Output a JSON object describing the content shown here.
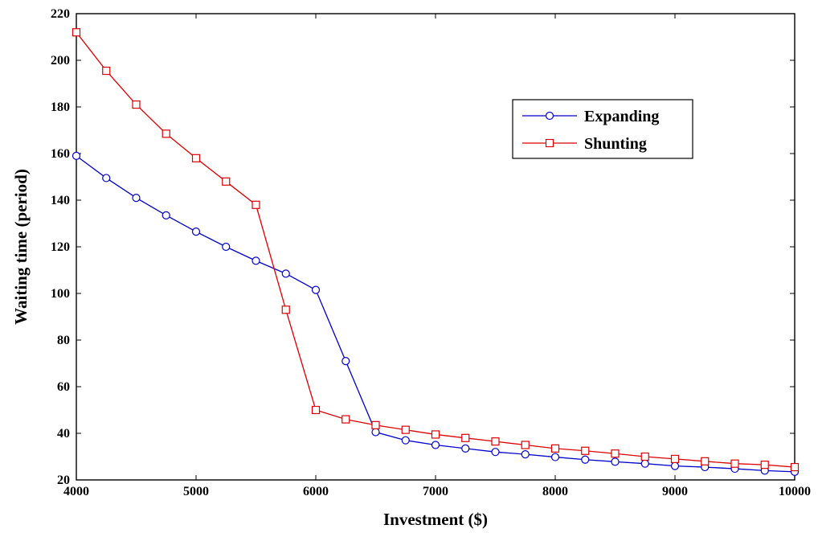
{
  "chart_data": {
    "type": "line",
    "title": "",
    "xlabel": "Investment ($)",
    "ylabel": "Waiting time (period)",
    "xlim": [
      4000,
      10000
    ],
    "ylim": [
      20,
      220
    ],
    "xticks": [
      4000,
      5000,
      6000,
      7000,
      8000,
      9000,
      10000
    ],
    "yticks": [
      20,
      40,
      60,
      80,
      100,
      120,
      140,
      160,
      180,
      200,
      220
    ],
    "grid": false,
    "legend_position": "top-right",
    "x": [
      4000,
      4250,
      4500,
      4750,
      5000,
      5250,
      5500,
      5750,
      6000,
      6250,
      6500,
      6750,
      7000,
      7250,
      7500,
      7750,
      8000,
      8250,
      8500,
      8750,
      9000,
      9250,
      9500,
      9750,
      10000
    ],
    "series": [
      {
        "name": "Expanding",
        "color": "#0000cc",
        "marker": "circle",
        "values": [
          159,
          149.5,
          141,
          133.5,
          126.5,
          120,
          114,
          108.5,
          101.5,
          71,
          40.5,
          37,
          35,
          33.5,
          32,
          31,
          29.8,
          28.7,
          27.8,
          27,
          26,
          25.5,
          24.8,
          24,
          23.5
        ]
      },
      {
        "name": "Shunting",
        "color": "#dd0000",
        "marker": "square",
        "values": [
          212,
          195.5,
          181,
          168.5,
          158,
          148,
          138,
          93,
          50,
          46,
          43.5,
          41.5,
          39.5,
          38,
          36.5,
          35,
          33.5,
          32.5,
          31.3,
          30,
          29,
          28,
          27,
          26.5,
          25.5
        ]
      }
    ]
  }
}
